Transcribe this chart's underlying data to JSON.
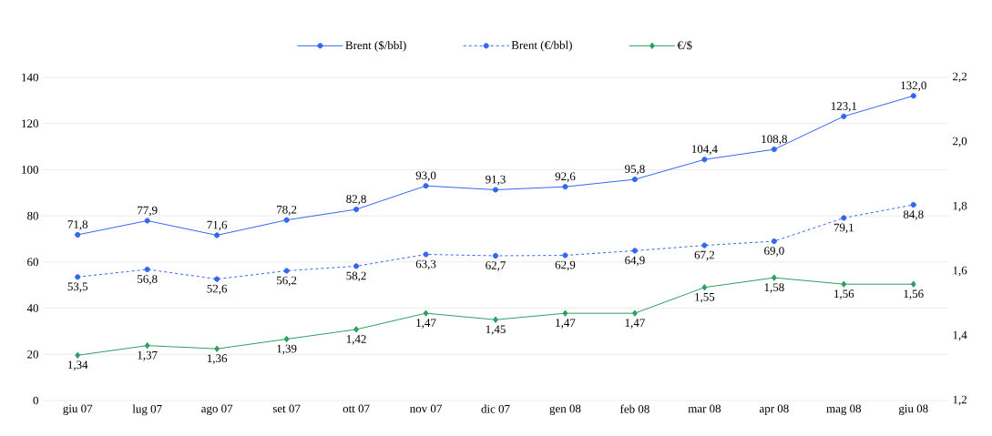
{
  "chart_data": {
    "type": "line",
    "categories": [
      "giu 07",
      "lug 07",
      "ago 07",
      "set 07",
      "ott 07",
      "nov 07",
      "dic 07",
      "gen 08",
      "feb 08",
      "mar 08",
      "apr 08",
      "mag 08",
      "giu 08"
    ],
    "series": [
      {
        "name": "Brent ($/bbl)",
        "color": "#3366f2",
        "marker": "circle",
        "line_style": "solid",
        "values": [
          71.8,
          77.9,
          71.6,
          78.2,
          82.8,
          93.0,
          91.3,
          92.6,
          95.8,
          104.4,
          108.8,
          123.1,
          132.0
        ],
        "value_labels": [
          "71,8",
          "77,9",
          "71,6",
          "78,2",
          "82,8",
          "93,0",
          "91,3",
          "92,6",
          "95,8",
          "104,4",
          "108,8",
          "123,1",
          "132,0"
        ]
      },
      {
        "name": "Brent (€/bbl)",
        "color": "#3366f2",
        "marker": "circle",
        "line_style": "dashed",
        "values": [
          53.5,
          56.8,
          52.6,
          56.2,
          58.2,
          63.3,
          62.7,
          62.9,
          64.9,
          67.2,
          69.0,
          79.1,
          84.8
        ],
        "value_labels": [
          "53,5",
          "56,8",
          "52,6",
          "56,2",
          "58,2",
          "63,3",
          "62,7",
          "62,9",
          "64,9",
          "67,2",
          "69,0",
          "79,1",
          "84,8"
        ]
      },
      {
        "name": "€/$",
        "color": "#2e9e62",
        "marker": "diamond",
        "line_style": "solid",
        "axis": "y2",
        "values": [
          1.34,
          1.37,
          1.36,
          1.39,
          1.42,
          1.47,
          1.45,
          1.47,
          1.47,
          1.55,
          1.58,
          1.56,
          1.56
        ],
        "value_labels": [
          "1,34",
          "1,37",
          "1,36",
          "1,39",
          "1,42",
          "1,47",
          "1,45",
          "1,47",
          "1,47",
          "1,55",
          "1,58",
          "1,56",
          "1,56"
        ]
      }
    ],
    "ylim": [
      0,
      140
    ],
    "yticks": [
      0,
      20,
      40,
      60,
      80,
      100,
      120,
      140
    ],
    "y2lim": [
      1.2,
      2.2
    ],
    "y2ticks": [
      {
        "value": 1.2,
        "label": "1,2"
      },
      {
        "value": 1.4,
        "label": "1,4"
      },
      {
        "value": 1.6,
        "label": "1,6"
      },
      {
        "value": 1.8,
        "label": "1,8"
      },
      {
        "value": 2.0,
        "label": "2,0"
      },
      {
        "value": 2.2,
        "label": "2,2"
      }
    ],
    "grid": "y",
    "legend": "top"
  }
}
